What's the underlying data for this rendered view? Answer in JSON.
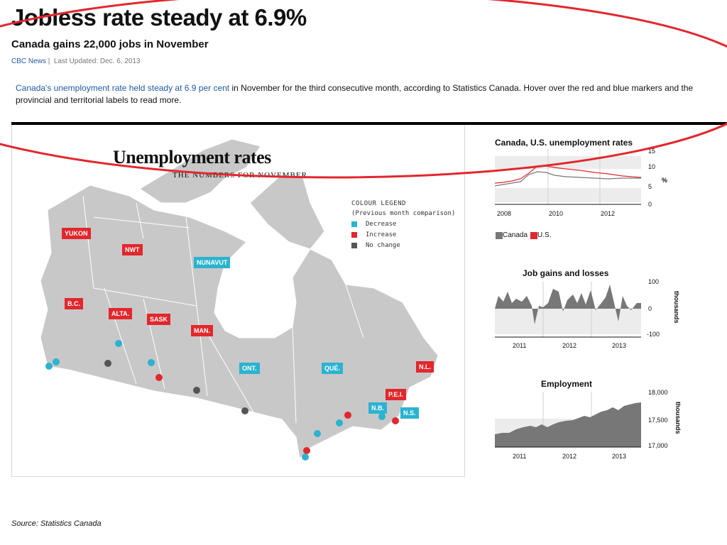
{
  "article": {
    "headline": "Jobless rate steady at 6.9%",
    "subhead": "Canada gains 22,000 jobs in November",
    "source_name": "CBC News",
    "separator": "|",
    "updated": "Last Updated: Dec. 6, 2013",
    "lede_link": "Canada's unemployment rate held steady at 6.9 per cent",
    "lede_rest": " in November for the third consecutive month, according to Statistics Canada. Hover over the red and blue markers and the provincial and territorial labels to read more.",
    "footer_source": "Source: Statistics Canada"
  },
  "map": {
    "title": "Unemployment rates",
    "subtitle": "THE NUMBERS FOR NOVEMBER",
    "legend_title": "COLOUR LEGEND",
    "legend_subtitle": "(Previous month comparison)",
    "legend_items": [
      {
        "label": "Decrease",
        "color": "#2bb3cf"
      },
      {
        "label": "Increase",
        "color": "#e2272d"
      },
      {
        "label": "No change",
        "color": "#555555"
      }
    ],
    "labels": {
      "yukon": "YUKON",
      "nwt": "NWT",
      "nunavut": "NUNAVUT",
      "bc": "B.C.",
      "alta": "ALTA.",
      "sask": "SASK",
      "man": "MAN.",
      "ont": "ONT.",
      "que": "QUÉ.",
      "nl": "N.L.",
      "pei": "P.E.I.",
      "nb": "N.B.",
      "ns": "N.S."
    },
    "land_color": "#c8c8c8",
    "increase_color": "#e2272d",
    "decrease_color": "#2bb3cf",
    "nochange_color": "#555555"
  },
  "charts": {
    "unemployment": {
      "title": "Canada, U.S. unemployment rates",
      "y_ticks": [
        "15",
        "10",
        "5",
        "0"
      ],
      "unit": "%",
      "x_ticks": [
        "2008",
        "2010",
        "2012"
      ],
      "legend": [
        {
          "label": "Canada",
          "color": "#777777"
        },
        {
          "label": "U.S.",
          "color": "#e2272d"
        }
      ]
    },
    "jobs": {
      "title": "Job gains and losses",
      "y_ticks": [
        "100",
        "0",
        "-100"
      ],
      "y_label": "thousands",
      "x_ticks": [
        "2011",
        "2012",
        "2013"
      ]
    },
    "employment": {
      "title": "Employment",
      "y_ticks": [
        "18,000",
        "17,500",
        "17,000"
      ],
      "y_label": "thousands",
      "x_ticks": [
        "2011",
        "2012",
        "2013"
      ]
    }
  }
}
